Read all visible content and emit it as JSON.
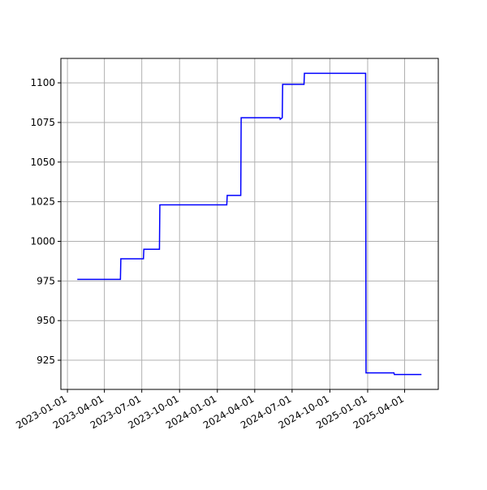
{
  "chart_data": {
    "type": "line",
    "x": [
      "2023-01-25",
      "2023-05-10",
      "2023-05-11",
      "2023-07-05",
      "2023-07-06",
      "2023-08-13",
      "2023-08-14",
      "2024-01-24",
      "2024-01-25",
      "2024-02-27",
      "2024-02-28",
      "2024-06-01",
      "2024-06-02",
      "2024-06-07",
      "2024-06-08",
      "2024-07-30",
      "2024-07-31",
      "2024-12-27",
      "2024-12-28",
      "2025-03-06",
      "2025-03-07",
      "2025-05-12"
    ],
    "series": [
      {
        "color": "#0000ff",
        "values": [
          976,
          976,
          989,
          989,
          995,
          995,
          1023,
          1023,
          1029,
          1029,
          1078,
          1078,
          1077,
          1078,
          1099,
          1099,
          1106,
          1106,
          917,
          917,
          916,
          916
        ]
      }
    ],
    "xlim": [
      "2022-12-16",
      "2025-06-22"
    ],
    "xticks": [
      "2023-01-01",
      "2023-04-01",
      "2023-07-01",
      "2023-10-01",
      "2024-01-01",
      "2024-04-01",
      "2024-07-01",
      "2024-10-01",
      "2025-01-01",
      "2025-04-01"
    ],
    "ylim": [
      906.6,
      1115.4
    ],
    "yticks": [
      925,
      950,
      975,
      1000,
      1025,
      1050,
      1075,
      1100
    ],
    "grid": true
  }
}
